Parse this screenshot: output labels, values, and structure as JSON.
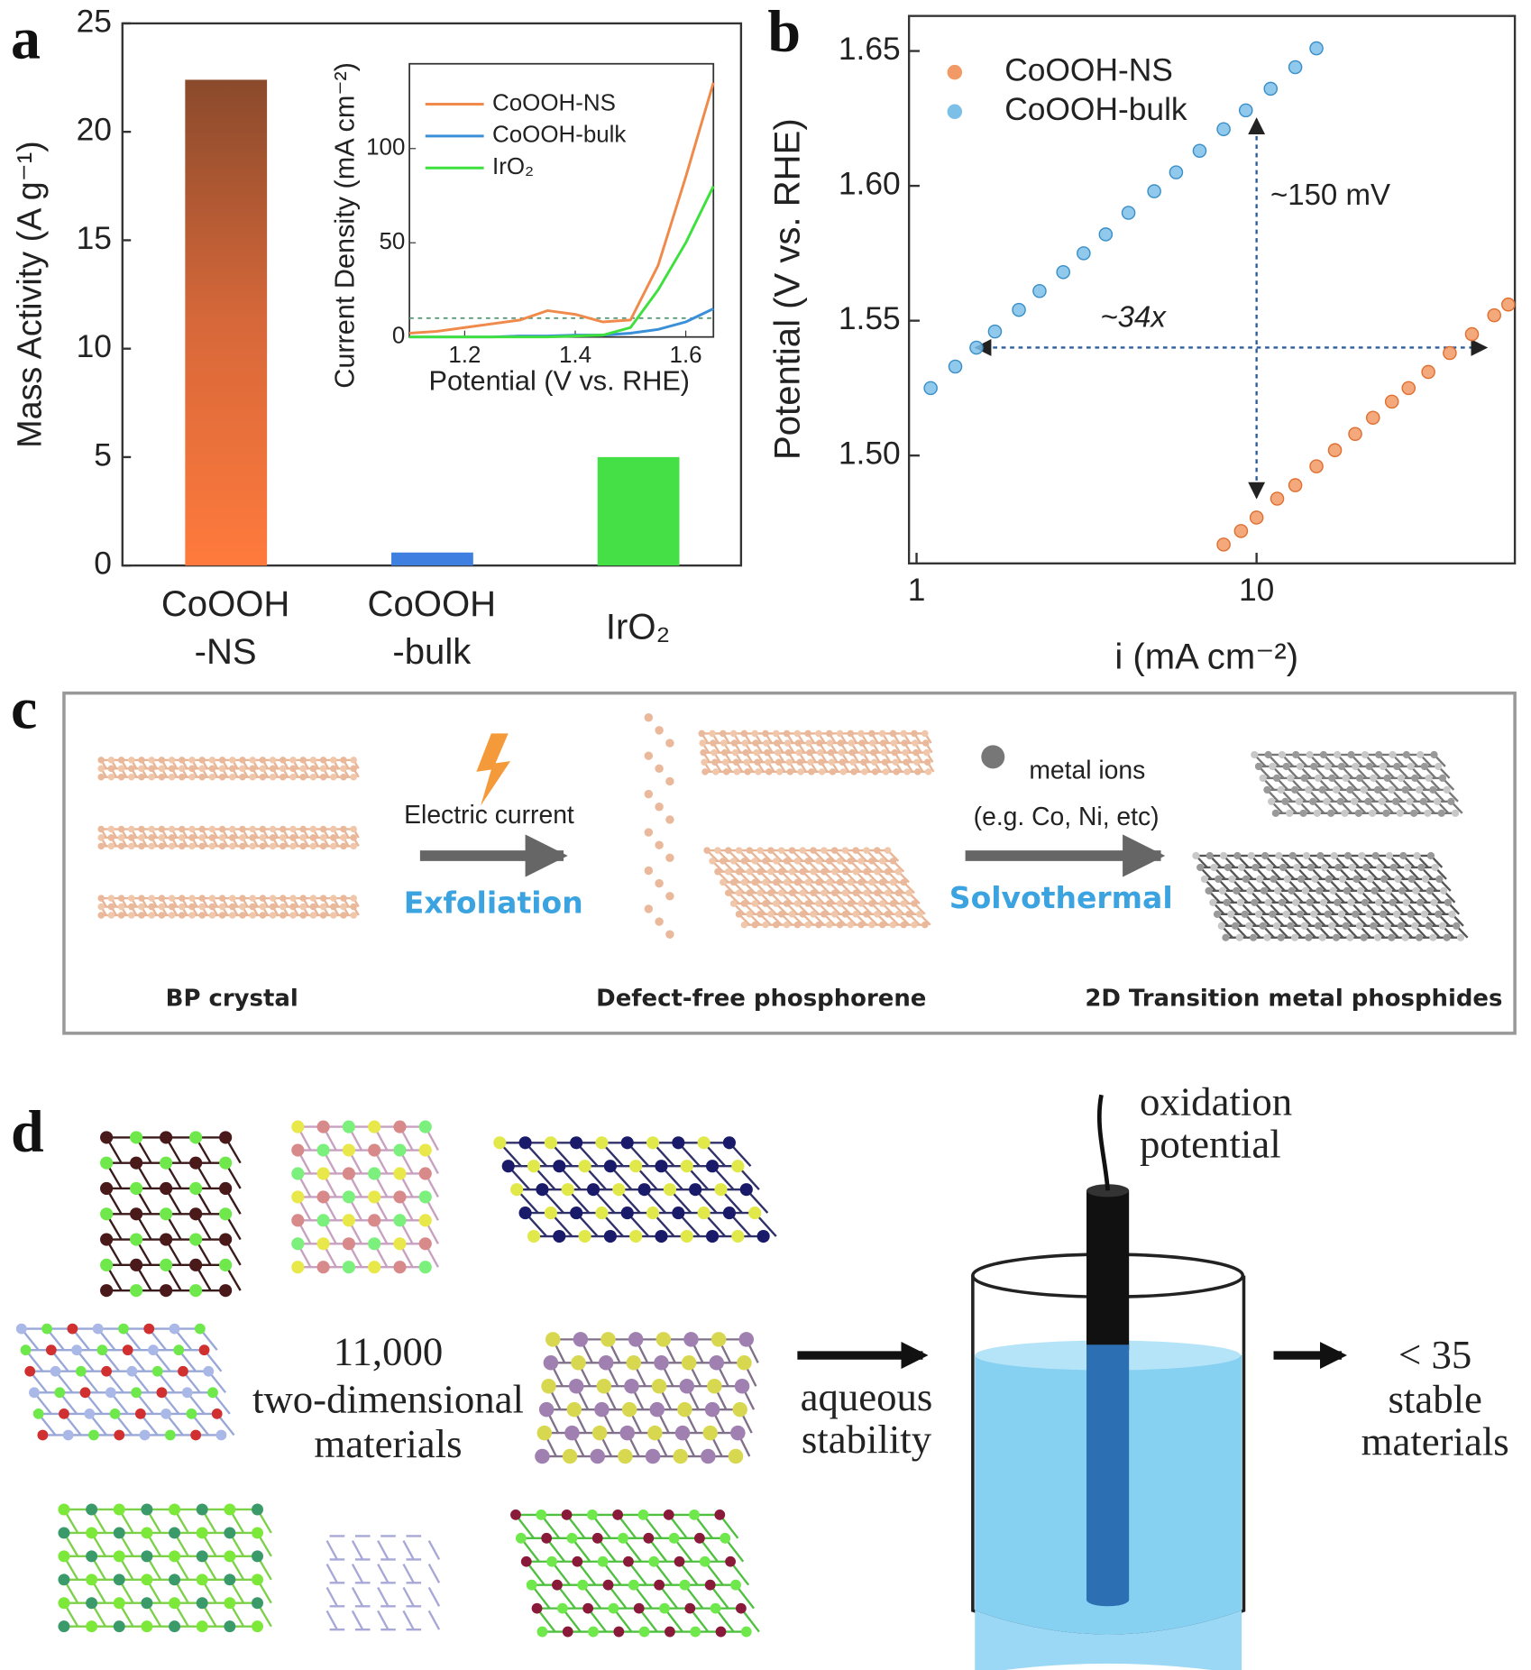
{
  "chart_data": [
    {
      "type": "bar",
      "panel_label": "a",
      "ylabel": "Mass Activity (A g⁻¹)",
      "categories": [
        "CoOOH-NS",
        "CoOOH-bulk",
        "IrO₂"
      ],
      "values": [
        22.4,
        0.6,
        5.0
      ],
      "colors": [
        "#ff7a3c",
        "#3f7fe0",
        "#45e045"
      ],
      "ylim": [
        0,
        25
      ],
      "yticks": [
        0,
        5,
        10,
        15,
        20,
        25
      ]
    },
    {
      "type": "line",
      "xlabel": "Potential (V vs. RHE)",
      "ylabel": "Current Density (mA cm⁻²)",
      "x": [
        1.1,
        1.15,
        1.2,
        1.25,
        1.3,
        1.35,
        1.4,
        1.45,
        1.5,
        1.55,
        1.6,
        1.65
      ],
      "series": [
        {
          "name": "CoOOH-NS",
          "color": "#f08a4b",
          "values": [
            2,
            3,
            5,
            7,
            9,
            14,
            12,
            8,
            9,
            38,
            85,
            135
          ]
        },
        {
          "name": "CoOOH-bulk",
          "color": "#3a90d8",
          "values": [
            0,
            0,
            0,
            0,
            0.5,
            0.5,
            1,
            1,
            2,
            4,
            8,
            15
          ]
        },
        {
          "name": "IrO₂",
          "color": "#3ee03e",
          "values": [
            0,
            0,
            0,
            0,
            0,
            0,
            0.5,
            1,
            5,
            25,
            50,
            80
          ]
        }
      ],
      "hline": 10,
      "xlim": [
        1.1,
        1.65
      ],
      "xticks": [
        1.2,
        1.4,
        1.6
      ],
      "ylim": [
        0,
        145
      ],
      "yticks": [
        0,
        50,
        100
      ]
    },
    {
      "type": "scatter",
      "panel_label": "b",
      "xlabel": "i (mA cm⁻²)",
      "ylabel": "Potential (V vs. RHE)",
      "log_x": true,
      "annotations": [
        "~150 mV",
        "~34x"
      ],
      "series": [
        {
          "name": "CoOOH-NS",
          "color": "#f29a66",
          "x": [
            8,
            9,
            10,
            11.5,
            13,
            15,
            17,
            19.5,
            22,
            25,
            28,
            32,
            37,
            43,
            50,
            55
          ],
          "values": [
            1.467,
            1.472,
            1.477,
            1.484,
            1.489,
            1.496,
            1.502,
            1.508,
            1.514,
            1.52,
            1.525,
            1.531,
            1.538,
            1.545,
            1.552,
            1.556
          ]
        },
        {
          "name": "CoOOH-bulk",
          "color": "#7cc0e8",
          "x": [
            1.1,
            1.3,
            1.5,
            1.7,
            2,
            2.3,
            2.7,
            3.1,
            3.6,
            4.2,
            5,
            5.8,
            6.8,
            8,
            9.3,
            11,
            13,
            15
          ],
          "values": [
            1.525,
            1.533,
            1.54,
            1.546,
            1.554,
            1.561,
            1.568,
            1.575,
            1.582,
            1.59,
            1.598,
            1.605,
            1.613,
            1.621,
            1.628,
            1.636,
            1.644,
            1.651
          ]
        }
      ],
      "xlim": [
        0.95,
        57.5
      ],
      "xticks": [
        1,
        10
      ],
      "ylim": [
        1.46,
        1.663
      ],
      "yticks": [
        {
          "value": 1.5,
          "label": "1.50"
        },
        {
          "value": 1.55,
          "label": "1.55"
        },
        {
          "value": 1.6,
          "label": "1.60"
        },
        {
          "value": 1.65,
          "label": "1.65"
        }
      ]
    }
  ],
  "panel_c": {
    "panel_label": "c",
    "electric_current": "Electric current",
    "exfoliation": "Exfoliation",
    "bp_crystal": "BP crystal",
    "phosphorene": "Defect-free phosphorene",
    "metal_ions": "metal ions",
    "examples": "(e.g. Co, Ni, etc)",
    "solvothermal": "Solvothermal",
    "phosphides": "2D Transition metal phosphides"
  },
  "panel_d": {
    "panel_label": "d",
    "oxidation": [
      "oxidation",
      "potential"
    ],
    "materials": [
      "11,000",
      "two-dimensional",
      "materials"
    ],
    "stability": [
      "aqueous",
      "stability"
    ],
    "stable": [
      "< 35",
      "stable",
      "materials"
    ]
  }
}
